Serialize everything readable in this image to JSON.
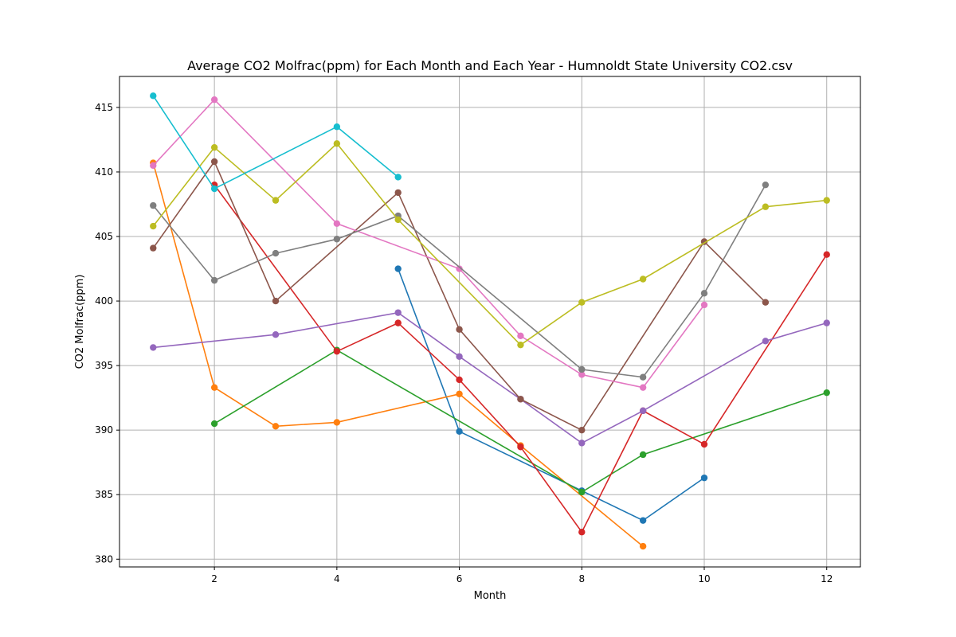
{
  "chart_data": {
    "type": "line",
    "title": "Average CO2 Molfrac(ppm) for Each Month and Each Year - Humnoldt State University CO2.csv",
    "xlabel": "Month",
    "ylabel": "CO2 Molfrac(ppm)",
    "xlim": [
      0.45,
      12.55
    ],
    "ylim": [
      379.4,
      417.4
    ],
    "xticks": [
      2,
      4,
      6,
      8,
      10,
      12
    ],
    "yticks": [
      380,
      385,
      390,
      395,
      400,
      405,
      410,
      415
    ],
    "grid": true,
    "series": [
      {
        "color": "#1f77b4",
        "points": [
          [
            5,
            402.5
          ],
          [
            6,
            389.9
          ],
          [
            8,
            385.3
          ],
          [
            9,
            383.0
          ],
          [
            10,
            386.3
          ]
        ]
      },
      {
        "color": "#ff7f0e",
        "points": [
          [
            1,
            410.7
          ],
          [
            2,
            393.3
          ],
          [
            3,
            390.3
          ],
          [
            4,
            390.6
          ],
          [
            6,
            392.8
          ],
          [
            7,
            388.8
          ],
          [
            9,
            381.0
          ]
        ]
      },
      {
        "color": "#2ca02c",
        "points": [
          [
            2,
            390.5
          ],
          [
            4,
            396.2
          ],
          [
            8,
            385.2
          ],
          [
            9,
            388.1
          ],
          [
            12,
            392.9
          ]
        ]
      },
      {
        "color": "#d62728",
        "points": [
          [
            2,
            409.0
          ],
          [
            4,
            396.1
          ],
          [
            5,
            398.3
          ],
          [
            6,
            393.9
          ],
          [
            7,
            388.7
          ],
          [
            8,
            382.1
          ],
          [
            9,
            391.5
          ],
          [
            10,
            388.9
          ],
          [
            12,
            403.6
          ]
        ]
      },
      {
        "color": "#9467bd",
        "points": [
          [
            1,
            396.4
          ],
          [
            3,
            397.4
          ],
          [
            5,
            399.1
          ],
          [
            6,
            395.7
          ],
          [
            7,
            392.4
          ],
          [
            8,
            389.0
          ],
          [
            9,
            391.5
          ],
          [
            11,
            396.9
          ],
          [
            12,
            398.3
          ]
        ]
      },
      {
        "color": "#8c564b",
        "points": [
          [
            1,
            404.1
          ],
          [
            2,
            410.8
          ],
          [
            3,
            400.0
          ],
          [
            5,
            408.4
          ],
          [
            6,
            397.8
          ],
          [
            7,
            392.4
          ],
          [
            8,
            390.0
          ],
          [
            10,
            404.6
          ],
          [
            11,
            399.9
          ]
        ]
      },
      {
        "color": "#e377c2",
        "points": [
          [
            1,
            410.5
          ],
          [
            2,
            415.6
          ],
          [
            4,
            406.0
          ],
          [
            6,
            402.5
          ],
          [
            7,
            397.3
          ],
          [
            8,
            394.3
          ],
          [
            9,
            393.3
          ],
          [
            10,
            399.7
          ]
        ]
      },
      {
        "color": "#7f7f7f",
        "points": [
          [
            1,
            407.4
          ],
          [
            2,
            401.6
          ],
          [
            3,
            403.7
          ],
          [
            4,
            404.8
          ],
          [
            5,
            406.6
          ],
          [
            8,
            394.7
          ],
          [
            9,
            394.1
          ],
          [
            10,
            400.6
          ],
          [
            11,
            409.0
          ]
        ]
      },
      {
        "color": "#bcbd22",
        "points": [
          [
            1,
            405.8
          ],
          [
            2,
            411.9
          ],
          [
            3,
            407.8
          ],
          [
            4,
            412.2
          ],
          [
            5,
            406.3
          ],
          [
            7,
            396.6
          ],
          [
            8,
            399.9
          ],
          [
            9,
            401.7
          ],
          [
            11,
            407.3
          ],
          [
            12,
            407.8
          ]
        ]
      },
      {
        "color": "#17becf",
        "points": [
          [
            1,
            415.9
          ],
          [
            2,
            408.7
          ],
          [
            4,
            413.5
          ],
          [
            5,
            409.6
          ]
        ]
      }
    ]
  }
}
